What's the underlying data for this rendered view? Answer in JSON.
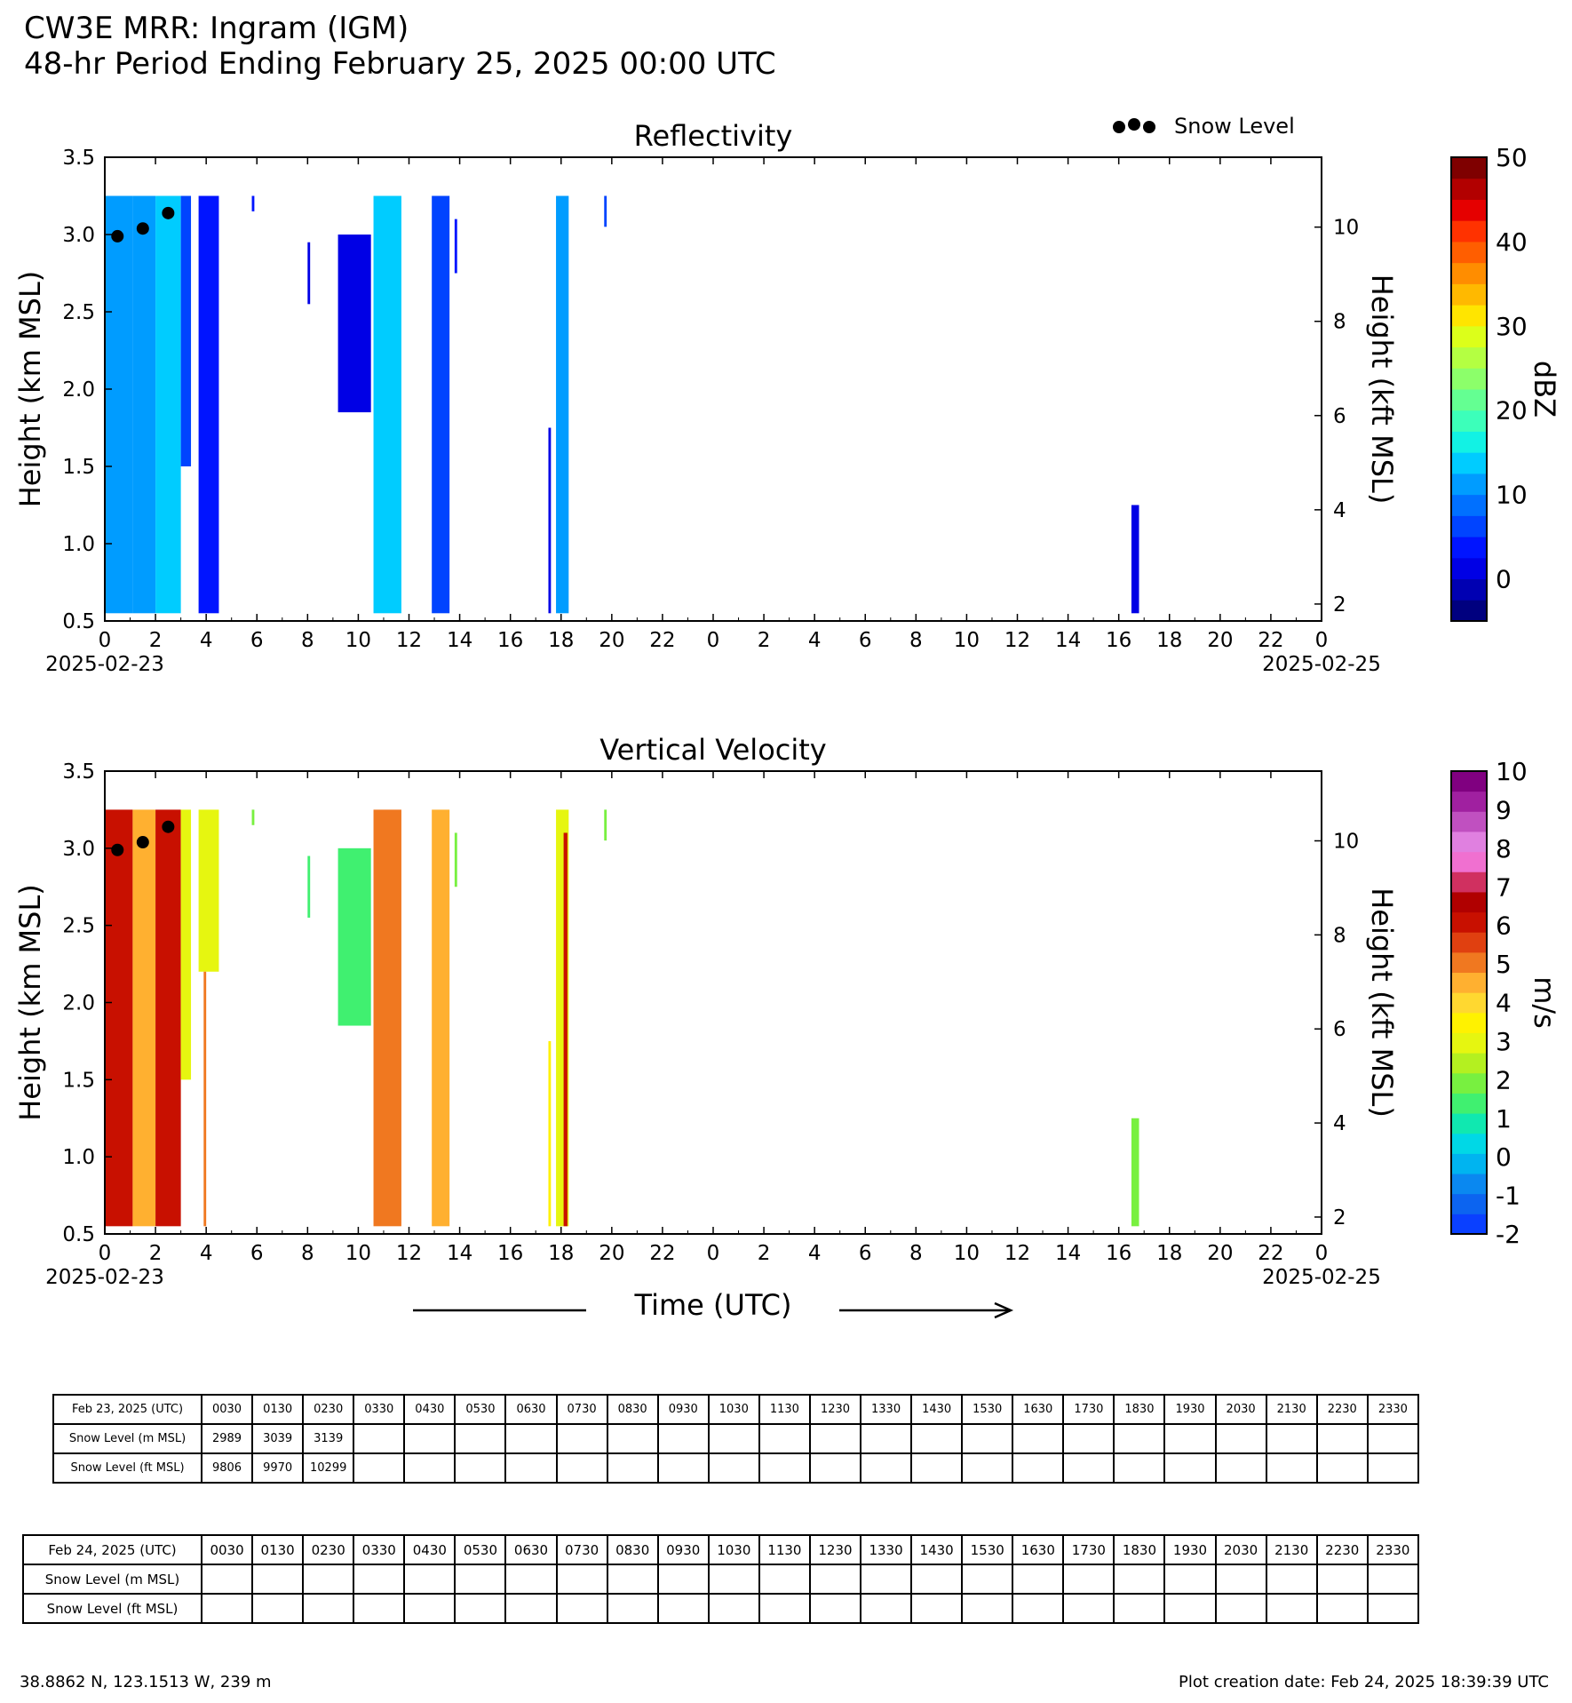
{
  "header": {
    "title": "CW3E MRR: Ingram (IGM)",
    "subtitle": "48-hr Period Ending February 25, 2025 00:00 UTC"
  },
  "xaxis_center_label": "Time (UTC)",
  "chart_data": [
    {
      "type": "heatmap",
      "title": "Reflectivity",
      "xlabel_start_date": "2025-02-23",
      "xlabel_end_date": "2025-02-25",
      "x_range_hours": [
        0,
        48
      ],
      "x_tick_labels": [
        "0",
        "2",
        "4",
        "6",
        "8",
        "10",
        "12",
        "14",
        "16",
        "18",
        "20",
        "22",
        "0",
        "2",
        "4",
        "6",
        "8",
        "10",
        "12",
        "14",
        "16",
        "18",
        "20",
        "22",
        "0"
      ],
      "ylabel": "Height (km MSL)",
      "ylim": [
        0.5,
        3.5
      ],
      "y_ticks": [
        "0.5",
        "1.0",
        "1.5",
        "2.0",
        "2.5",
        "3.0",
        "3.5"
      ],
      "y2label": "Height (kft MSL)",
      "y2_ticks": [
        2,
        4,
        6,
        8,
        10
      ],
      "colorbar": {
        "label": "dBZ",
        "min": -5,
        "max": 50,
        "ticks": [
          0,
          10,
          20,
          30,
          40,
          50
        ],
        "colors": [
          "#00007f",
          "#0000b2",
          "#0000e5",
          "#0014ff",
          "#0044ff",
          "#0070ff",
          "#009cff",
          "#00ccff",
          "#12f2e4",
          "#3cffba",
          "#64ff92",
          "#8cff6a",
          "#b4ff42",
          "#dcff1a",
          "#ffe500",
          "#ffb900",
          "#ff8d00",
          "#ff5e00",
          "#ff3200",
          "#e50000",
          "#b20000",
          "#7f0000"
        ]
      },
      "legend": {
        "label": "Snow Level",
        "position": "top-right"
      },
      "snow_level_points": [
        {
          "time_h": 0.5,
          "height_km": 2.989
        },
        {
          "time_h": 1.5,
          "height_km": 3.039
        },
        {
          "time_h": 2.5,
          "height_km": 3.139
        }
      ],
      "echo_columns": [
        {
          "t0": 0.0,
          "t1": 1.1,
          "bottom": 0.55,
          "top": 3.25,
          "level": 12
        },
        {
          "t0": 1.1,
          "t1": 2.0,
          "bottom": 0.55,
          "top": 3.25,
          "level": 10
        },
        {
          "t0": 2.0,
          "t1": 3.0,
          "bottom": 0.55,
          "top": 3.25,
          "level": 13
        },
        {
          "t0": 3.0,
          "t1": 3.4,
          "bottom": 1.5,
          "top": 3.25,
          "level": 7
        },
        {
          "t0": 3.7,
          "t1": 4.5,
          "bottom": 0.55,
          "top": 3.25,
          "level": 4
        },
        {
          "t0": 5.8,
          "t1": 5.9,
          "bottom": 3.15,
          "top": 3.25,
          "level": 4
        },
        {
          "t0": 8.0,
          "t1": 8.1,
          "bottom": 2.55,
          "top": 2.95,
          "level": 2
        },
        {
          "t0": 9.2,
          "t1": 10.5,
          "bottom": 1.85,
          "top": 3.0,
          "level": 2
        },
        {
          "t0": 10.6,
          "t1": 11.7,
          "bottom": 0.55,
          "top": 3.25,
          "level": 13
        },
        {
          "t0": 12.9,
          "t1": 13.6,
          "bottom": 0.55,
          "top": 3.25,
          "level": 5
        },
        {
          "t0": 13.8,
          "t1": 13.9,
          "bottom": 2.75,
          "top": 3.1,
          "level": 4
        },
        {
          "t0": 17.5,
          "t1": 17.6,
          "bottom": 0.55,
          "top": 1.75,
          "level": 2
        },
        {
          "t0": 17.8,
          "t1": 18.3,
          "bottom": 0.55,
          "top": 3.25,
          "level": 11
        },
        {
          "t0": 19.7,
          "t1": 19.8,
          "bottom": 3.05,
          "top": 3.25,
          "level": 5
        },
        {
          "t0": 40.5,
          "t1": 40.8,
          "bottom": 0.55,
          "top": 1.25,
          "level": 2
        }
      ]
    },
    {
      "type": "heatmap",
      "title": "Vertical Velocity",
      "xlabel_start_date": "2025-02-23",
      "xlabel_end_date": "2025-02-25",
      "x_range_hours": [
        0,
        48
      ],
      "x_tick_labels": [
        "0",
        "2",
        "4",
        "6",
        "8",
        "10",
        "12",
        "14",
        "16",
        "18",
        "20",
        "22",
        "0",
        "2",
        "4",
        "6",
        "8",
        "10",
        "12",
        "14",
        "16",
        "18",
        "20",
        "22",
        "0"
      ],
      "ylabel": "Height (km MSL)",
      "ylim": [
        0.5,
        3.5
      ],
      "y_ticks": [
        "0.5",
        "1.0",
        "1.5",
        "2.0",
        "2.5",
        "3.0",
        "3.5"
      ],
      "y2label": "Height (kft MSL)",
      "y2_ticks": [
        2,
        4,
        6,
        8,
        10
      ],
      "colorbar": {
        "label": "m/s",
        "min": -2,
        "max": 10,
        "ticks": [
          "10",
          "9",
          "8",
          "7",
          "6",
          "5",
          "4",
          "3",
          "2",
          "1",
          "0",
          "-1",
          "-2"
        ],
        "colors": [
          "#0a40ff",
          "#0c64f0",
          "#0a88f0",
          "#00b4f0",
          "#00d8e6",
          "#10e8b0",
          "#40f070",
          "#78f040",
          "#b4f020",
          "#e6f610",
          "#fff200",
          "#ffd830",
          "#ffb030",
          "#f07820",
          "#e04010",
          "#c81000",
          "#b00000",
          "#d03060",
          "#f070d0",
          "#e080e0",
          "#c050c0",
          "#a020a0",
          "#800080"
        ]
      },
      "snow_level_points": [
        {
          "time_h": 0.5,
          "height_km": 2.989
        },
        {
          "time_h": 1.5,
          "height_km": 3.039
        },
        {
          "time_h": 2.5,
          "height_km": 3.139
        }
      ],
      "echo_columns": [
        {
          "t0": 0.0,
          "t1": 1.1,
          "bottom": 0.55,
          "top": 3.25,
          "level": 6.0
        },
        {
          "t0": 1.1,
          "t1": 2.0,
          "bottom": 0.55,
          "top": 3.25,
          "level": 4.5
        },
        {
          "t0": 2.0,
          "t1": 3.0,
          "bottom": 0.55,
          "top": 3.25,
          "level": 6.0
        },
        {
          "t0": 3.0,
          "t1": 3.4,
          "bottom": 1.5,
          "top": 3.25,
          "level": 3.0
        },
        {
          "t0": 3.7,
          "t1": 4.5,
          "bottom": 2.2,
          "top": 3.25,
          "level": 3.0
        },
        {
          "t0": 3.9,
          "t1": 4.0,
          "bottom": 0.55,
          "top": 2.2,
          "level": 5.0
        },
        {
          "t0": 5.8,
          "t1": 5.9,
          "bottom": 3.15,
          "top": 3.25,
          "level": 2.0
        },
        {
          "t0": 8.0,
          "t1": 8.1,
          "bottom": 2.55,
          "top": 2.95,
          "level": 1.5
        },
        {
          "t0": 9.2,
          "t1": 10.5,
          "bottom": 1.85,
          "top": 3.0,
          "level": 1.5
        },
        {
          "t0": 10.6,
          "t1": 11.7,
          "bottom": 0.55,
          "top": 3.25,
          "level": 5.0
        },
        {
          "t0": 12.9,
          "t1": 13.6,
          "bottom": 0.55,
          "top": 3.25,
          "level": 4.5
        },
        {
          "t0": 13.8,
          "t1": 13.9,
          "bottom": 2.75,
          "top": 3.1,
          "level": 2.0
        },
        {
          "t0": 17.5,
          "t1": 17.6,
          "bottom": 0.55,
          "top": 1.75,
          "level": 3.5
        },
        {
          "t0": 17.8,
          "t1": 18.3,
          "bottom": 0.55,
          "top": 3.25,
          "level": 3.0
        },
        {
          "t0": 18.1,
          "t1": 18.25,
          "bottom": 0.55,
          "top": 3.1,
          "level": 6.0
        },
        {
          "t0": 19.7,
          "t1": 19.8,
          "bottom": 3.05,
          "top": 3.25,
          "level": 2.0
        },
        {
          "t0": 40.5,
          "t1": 40.8,
          "bottom": 0.55,
          "top": 1.25,
          "level": 2.0
        }
      ]
    }
  ],
  "tables": [
    {
      "header": "Feb 23, 2025 (UTC)",
      "times": [
        "0030",
        "0130",
        "0230",
        "0330",
        "0430",
        "0530",
        "0630",
        "0730",
        "0830",
        "0930",
        "1030",
        "1130",
        "1230",
        "1330",
        "1430",
        "1530",
        "1630",
        "1730",
        "1830",
        "1930",
        "2030",
        "2130",
        "2230",
        "2330"
      ],
      "rows": [
        {
          "label": "Snow Level (m MSL)",
          "values": [
            "2989",
            "3039",
            "3139",
            "",
            "",
            "",
            "",
            "",
            "",
            "",
            "",
            "",
            "",
            "",
            "",
            "",
            "",
            "",
            "",
            "",
            "",
            "",
            "",
            ""
          ]
        },
        {
          "label": "Snow Level (ft MSL)",
          "values": [
            "9806",
            "9970",
            "10299",
            "",
            "",
            "",
            "",
            "",
            "",
            "",
            "",
            "",
            "",
            "",
            "",
            "",
            "",
            "",
            "",
            "",
            "",
            "",
            "",
            ""
          ]
        }
      ]
    },
    {
      "header": "Feb 24, 2025 (UTC)",
      "times": [
        "0030",
        "0130",
        "0230",
        "0330",
        "0430",
        "0530",
        "0630",
        "0730",
        "0830",
        "0930",
        "1030",
        "1130",
        "1230",
        "1330",
        "1430",
        "1530",
        "1630",
        "1730",
        "1830",
        "1930",
        "2030",
        "2130",
        "2230",
        "2330"
      ],
      "rows": [
        {
          "label": "Snow Level (m MSL)",
          "values": [
            "",
            "",
            "",
            "",
            "",
            "",
            "",
            "",
            "",
            "",
            "",
            "",
            "",
            "",
            "",
            "",
            "",
            "",
            "",
            "",
            "",
            "",
            "",
            ""
          ]
        },
        {
          "label": "Snow Level (ft MSL)",
          "values": [
            "",
            "",
            "",
            "",
            "",
            "",
            "",
            "",
            "",
            "",
            "",
            "",
            "",
            "",
            "",
            "",
            "",
            "",
            "",
            "",
            "",
            "",
            "",
            ""
          ]
        }
      ]
    }
  ],
  "footer": {
    "location": "38.8862 N, 123.1513 W, 239 m",
    "creation": "Plot creation date: Feb 24, 2025 18:39:39 UTC"
  }
}
